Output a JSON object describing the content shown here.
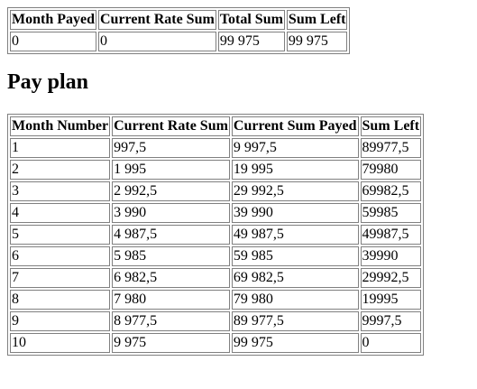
{
  "summary": {
    "headers": [
      "Month Payed",
      "Current Rate Sum",
      "Total Sum",
      "Sum Left"
    ],
    "row": [
      "0",
      "0",
      "99 975",
      "99 975"
    ]
  },
  "pay_plan": {
    "title": "Pay plan",
    "headers": [
      "Month Number",
      "Current Rate Sum",
      "Current Sum Payed",
      "Sum Left"
    ],
    "rows": [
      [
        "1",
        "997,5",
        "9 997,5",
        "89977,5"
      ],
      [
        "2",
        "1 995",
        "19 995",
        "79980"
      ],
      [
        "3",
        "2 992,5",
        "29 992,5",
        "69982,5"
      ],
      [
        "4",
        "3 990",
        "39 990",
        "59985"
      ],
      [
        "5",
        "4 987,5",
        "49 987,5",
        "49987,5"
      ],
      [
        "6",
        "5 985",
        "59 985",
        "39990"
      ],
      [
        "7",
        "6 982,5",
        "69 982,5",
        "29992,5"
      ],
      [
        "8",
        "7 980",
        "79 980",
        "19995"
      ],
      [
        "9",
        "8 977,5",
        "89 977,5",
        "9997,5"
      ],
      [
        "10",
        "9 975",
        "99 975",
        "0"
      ]
    ]
  }
}
